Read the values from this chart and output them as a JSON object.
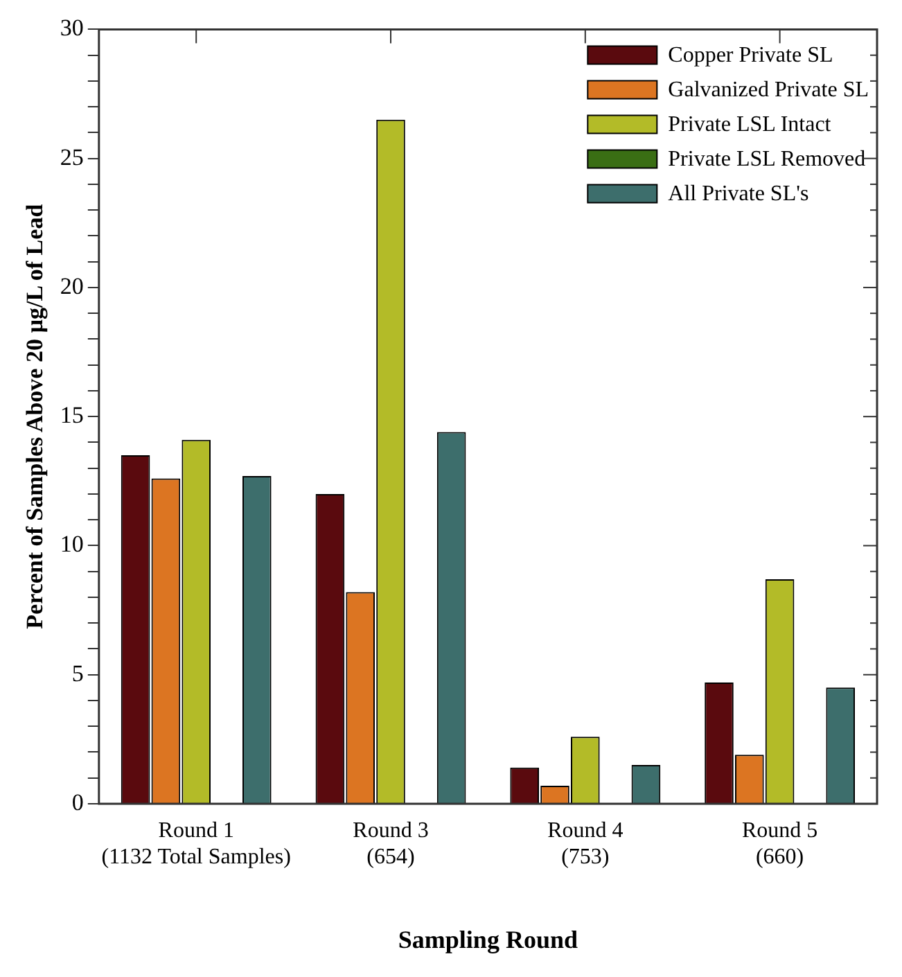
{
  "chart_data": {
    "type": "bar",
    "xlabel": "Sampling Round",
    "ylabel": "Percent of Samples Above 20 µg/L of Lead",
    "categories": [
      "Round 1\n(1132 Total Samples)",
      "Round 3\n(654)",
      "Round 4\n(753)",
      "Round 5\n(660)"
    ],
    "series": [
      {
        "name": "Copper Private SL",
        "color": "#5a0a0e",
        "values": [
          13.5,
          12.0,
          1.4,
          4.7
        ]
      },
      {
        "name": "Galvanized Private SL",
        "color": "#dc7522",
        "values": [
          12.6,
          8.2,
          0.7,
          1.9
        ]
      },
      {
        "name": "Private LSL Intact",
        "color": "#b3bb28",
        "values": [
          14.1,
          26.5,
          2.6,
          8.7
        ]
      },
      {
        "name": "Private LSL Removed",
        "color": "#3a6e14",
        "values": [
          0,
          0,
          0,
          0
        ]
      },
      {
        "name": "All Private SL's",
        "color": "#3d6e6c",
        "values": [
          12.7,
          14.4,
          1.5,
          4.5
        ]
      }
    ],
    "ylim": [
      0,
      30
    ],
    "yticks": [
      0,
      {
        "value": 1,
        "label": null
      },
      {
        "value": 2,
        "label": null
      },
      {
        "value": 3,
        "label": null
      },
      {
        "value": 4,
        "label": null
      },
      5,
      {
        "value": 6,
        "label": null
      },
      {
        "value": 7,
        "label": null
      },
      {
        "value": 8,
        "label": null
      },
      {
        "value": 9,
        "label": null
      },
      10,
      {
        "value": 11,
        "label": null
      },
      {
        "value": 12,
        "label": null
      },
      {
        "value": 13,
        "label": null
      },
      {
        "value": 14,
        "label": null
      },
      15,
      {
        "value": 16,
        "label": null
      },
      {
        "value": 17,
        "label": null
      },
      {
        "value": 18,
        "label": null
      },
      {
        "value": 19,
        "label": null
      },
      20,
      {
        "value": 21,
        "label": null
      },
      {
        "value": 22,
        "label": null
      },
      {
        "value": 23,
        "label": null
      },
      {
        "value": 24,
        "label": null
      },
      25,
      {
        "value": 26,
        "label": null
      },
      {
        "value": 27,
        "label": null
      },
      {
        "value": 28,
        "label": null
      },
      {
        "value": 29,
        "label": null
      },
      30
    ],
    "grid": false,
    "legend": "top right"
  }
}
